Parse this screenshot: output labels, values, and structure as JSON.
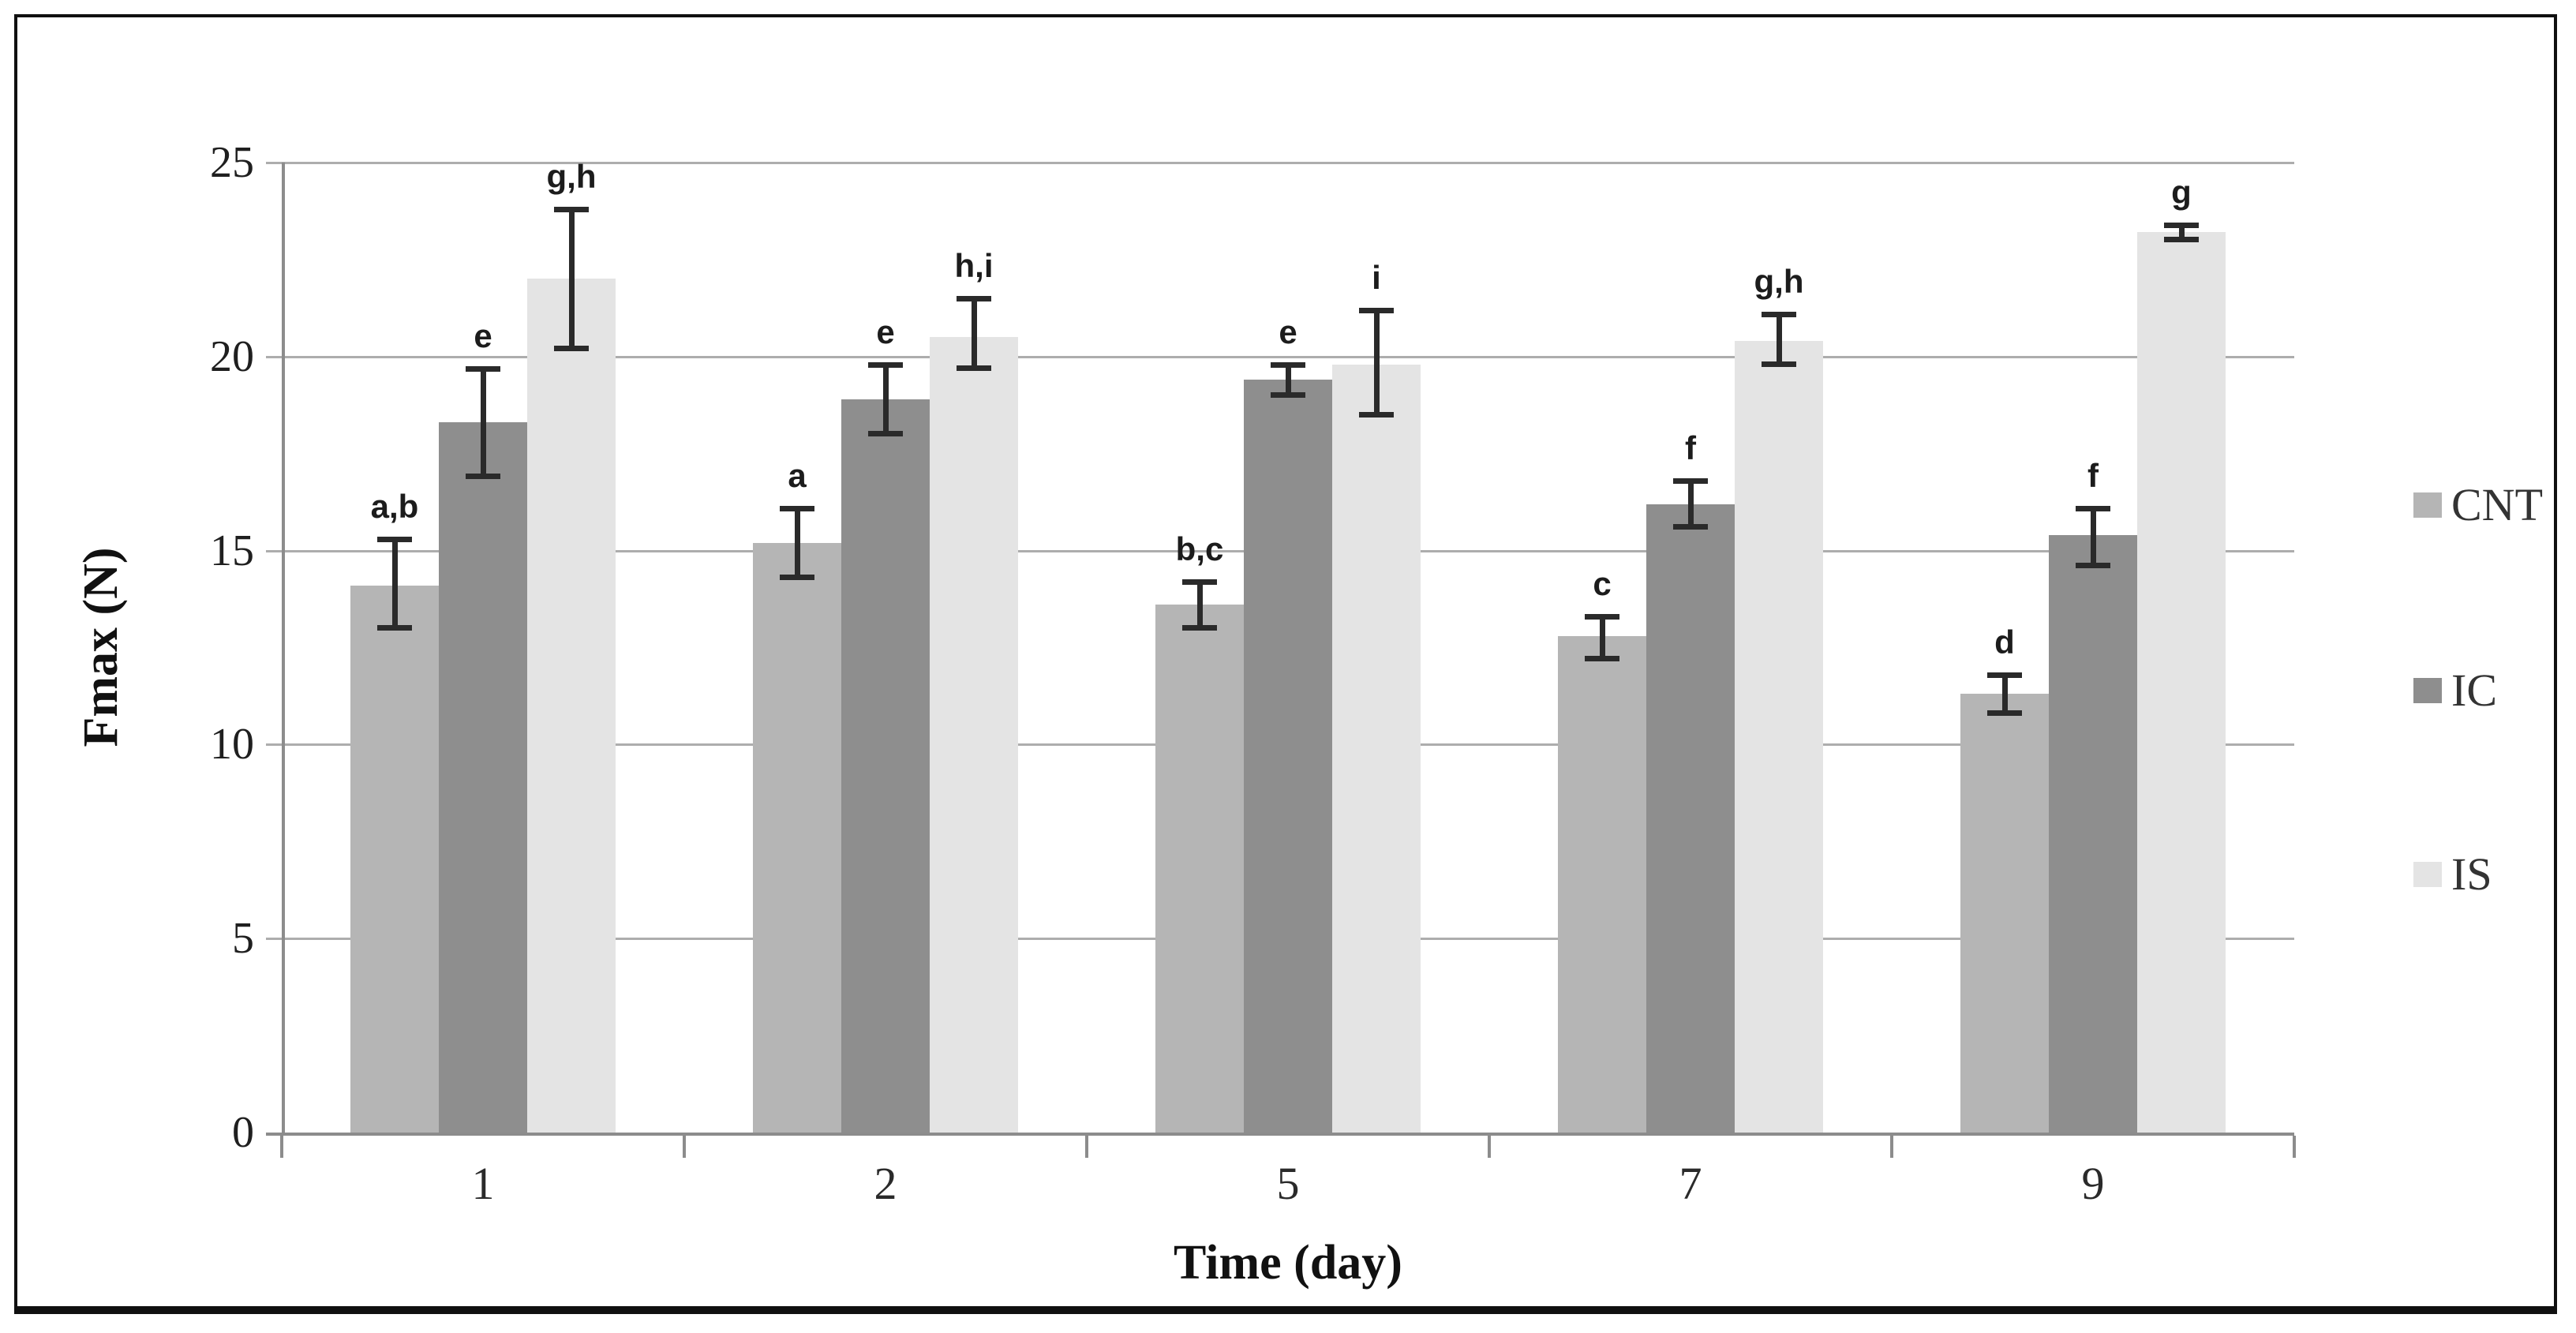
{
  "chart_data": {
    "type": "bar",
    "title": "",
    "xlabel": "Time (day)",
    "ylabel": "Fmax (N)",
    "categories": [
      "1",
      "2",
      "5",
      "7",
      "9"
    ],
    "y_ticks": [
      0,
      5,
      10,
      15,
      20,
      25
    ],
    "ylim": [
      0,
      25
    ],
    "grid": true,
    "legend_position": "right",
    "series": [
      {
        "name": "CNT",
        "color": "#b5b5b5",
        "values": [
          14.1,
          15.2,
          13.6,
          12.8,
          11.3
        ],
        "error_low": [
          13.0,
          14.3,
          13.0,
          12.2,
          10.8
        ],
        "error_high": [
          15.3,
          16.1,
          14.2,
          13.3,
          11.8
        ],
        "sig_labels": [
          "a,b",
          "a",
          "b,c",
          "c",
          "d"
        ]
      },
      {
        "name": "IC",
        "color": "#8e8e8e",
        "values": [
          18.3,
          18.9,
          19.4,
          16.2,
          15.4
        ],
        "error_low": [
          16.9,
          18.0,
          19.0,
          15.6,
          14.6
        ],
        "error_high": [
          19.7,
          19.8,
          19.8,
          16.8,
          16.1
        ],
        "sig_labels": [
          "e",
          "e",
          "e",
          "f",
          "f"
        ]
      },
      {
        "name": "IS",
        "color": "#e4e4e4",
        "values": [
          22.0,
          20.5,
          19.8,
          20.4,
          23.2
        ],
        "error_low": [
          20.2,
          19.7,
          18.5,
          19.8,
          23.0
        ],
        "error_high": [
          23.8,
          21.5,
          21.2,
          21.1,
          23.4
        ],
        "sig_labels": [
          "g,h",
          "h,i",
          "i",
          "g,h",
          "g"
        ]
      }
    ],
    "style_colors": {
      "gridline": "#adadad",
      "axis": "#8c8c8c",
      "error_bar": "#2a2a2a",
      "frame": "#101010"
    }
  }
}
